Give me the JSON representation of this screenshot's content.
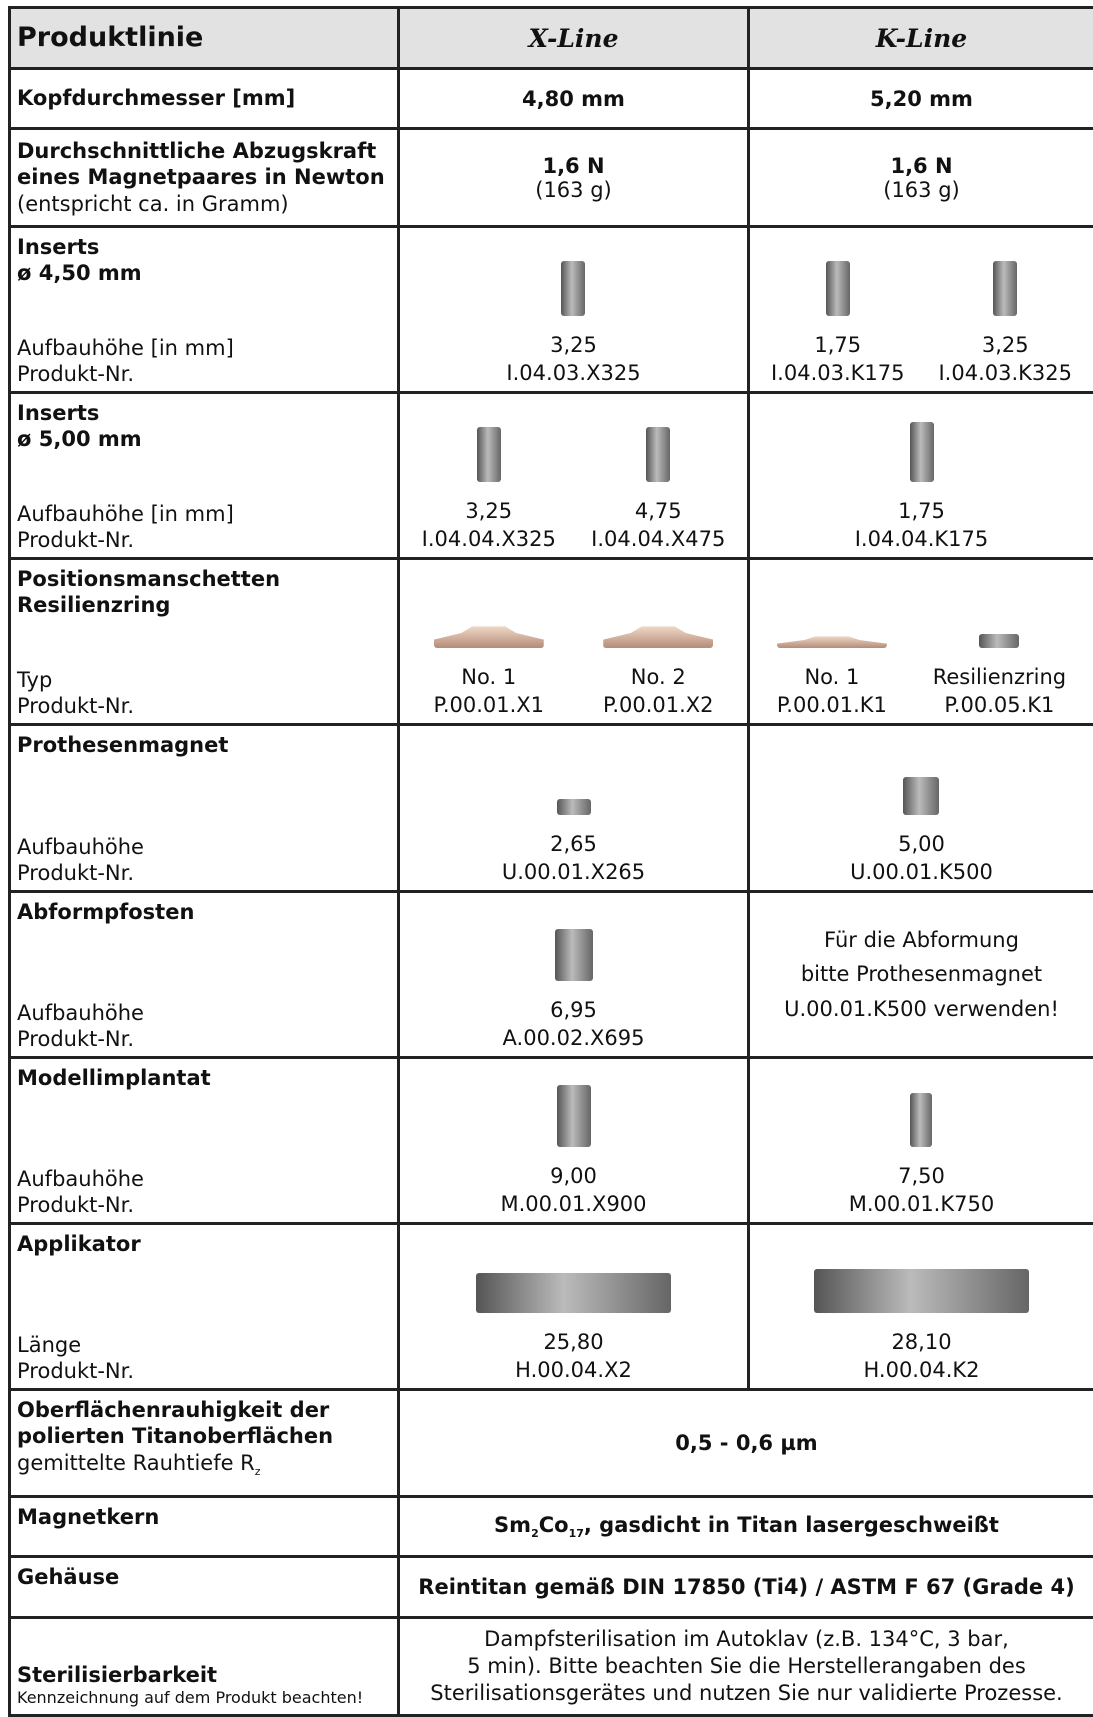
{
  "header": {
    "label": "Produktlinie",
    "x_line": "X-Line",
    "k_line": "K-Line"
  },
  "rows": [
    {
      "title": [
        "Kopfdurchmesser [mm]"
      ],
      "x": "4,80 mm",
      "k": "5,20 mm"
    },
    {
      "title": [
        "Durchschnittliche Abzugskraft",
        "eines Magnetpaares in Newton"
      ],
      "note": "(entspricht ca. in Gramm)",
      "x": {
        "force": "1,6 N",
        "grams": "(163 g)"
      },
      "k": {
        "force": "1,6 N",
        "grams": "(163 g)"
      }
    },
    {
      "title": [
        "Inserts",
        "ø 4,50 mm"
      ],
      "fields": [
        "Aufbauhöhe [in mm]",
        "Produkt-Nr."
      ],
      "x": [
        {
          "value": "3,25",
          "product": "I.04.03.X325"
        }
      ],
      "k": [
        {
          "value": "1,75",
          "product": "I.04.03.K175"
        },
        {
          "value": "3,25",
          "product": "I.04.03.K325"
        }
      ]
    },
    {
      "title": [
        "Inserts",
        "ø 5,00 mm"
      ],
      "fields": [
        "Aufbauhöhe [in mm]",
        "Produkt-Nr."
      ],
      "x": [
        {
          "value": "3,25",
          "product": "I.04.04.X325"
        },
        {
          "value": "4,75",
          "product": "I.04.04.X475"
        }
      ],
      "k": [
        {
          "value": "1,75",
          "product": "I.04.04.K175"
        }
      ]
    },
    {
      "title": [
        "Positionsmanschetten",
        "Resilienzring"
      ],
      "fields": [
        "Typ",
        "Produkt-Nr."
      ],
      "x": [
        {
          "value": "No. 1",
          "product": "P.00.01.X1"
        },
        {
          "value": "No. 2",
          "product": "P.00.01.X2"
        }
      ],
      "k": [
        {
          "value": "No. 1",
          "product": "P.00.01.K1"
        },
        {
          "value": "Resilienzring",
          "product": "P.00.05.K1"
        }
      ]
    },
    {
      "title": [
        "Prothesenmagnet"
      ],
      "fields": [
        "Aufbauhöhe",
        "Produkt-Nr."
      ],
      "x": [
        {
          "value": "2,65",
          "product": "U.00.01.X265"
        }
      ],
      "k": [
        {
          "value": "5,00",
          "product": "U.00.01.K500"
        }
      ]
    },
    {
      "title": [
        "Abformpfosten"
      ],
      "fields": [
        "Aufbauhöhe",
        "Produkt-Nr."
      ],
      "x": [
        {
          "value": "6,95",
          "product": "A.00.02.X695"
        }
      ],
      "k_note": [
        "Für die Abformung",
        "bitte Prothesenmagnet",
        "U.00.01.K500 verwenden!"
      ]
    },
    {
      "title": [
        "Modellimplantat"
      ],
      "fields": [
        "Aufbauhöhe",
        "Produkt-Nr."
      ],
      "x": [
        {
          "value": "9,00",
          "product": "M.00.01.X900"
        }
      ],
      "k": [
        {
          "value": "7,50",
          "product": "M.00.01.K750"
        }
      ]
    },
    {
      "title": [
        "Applikator"
      ],
      "fields": [
        "Länge",
        "Produkt-Nr."
      ],
      "x": [
        {
          "value": "25,80",
          "product": "H.00.04.X2"
        }
      ],
      "k": [
        {
          "value": "28,10",
          "product": "H.00.04.K2"
        }
      ]
    },
    {
      "title": [
        "Oberflächenrauhigkeit der",
        "polierten Titanoberflächen"
      ],
      "note": [
        "gemittelte Rauhtiefe R",
        "z"
      ],
      "value": "0,5 - 0,6 µm"
    },
    {
      "title": [
        "Magnetkern"
      ],
      "value": [
        "Sm",
        "2",
        "Co",
        "17",
        ", gasdicht in Titan lasergeschweißt"
      ]
    },
    {
      "title": [
        "Gehäuse"
      ],
      "value": "Reintitan gemäß DIN 17850 (Ti4) / ASTM F 67 (Grade 4)"
    },
    {
      "title": [
        "Sterilisierbarkeit"
      ],
      "note": "Kennzeichnung auf dem Produkt beachten!",
      "value": [
        "Dampfsterilisation im Autoklav (z.B. 134°C, 3 bar,",
        "5 min). Bitte beachten Sie die Herstellerangaben des",
        "Sterilisationsgerätes und nutzen Sie nur validierte Prozesse."
      ]
    }
  ]
}
